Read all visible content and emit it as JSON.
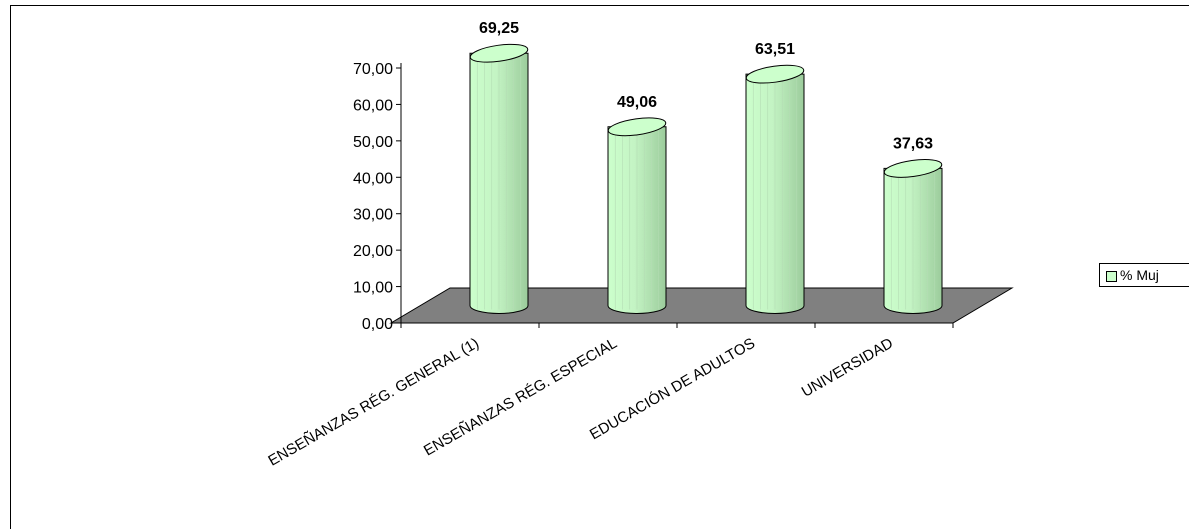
{
  "chart_data": {
    "type": "bar",
    "style": "3d-cylinder",
    "categories": [
      "ENSEÑANZAS RÉG. GENERAL (1)",
      "ENSEÑANZAS RÉG. ESPECIAL",
      "EDUCACIÓN DE ADULTOS",
      "UNIVERSIDAD"
    ],
    "series": [
      {
        "name": "% Muj",
        "values": [
          69.25,
          49.06,
          63.51,
          37.63
        ],
        "data_labels": [
          "69,25",
          "49,06",
          "63,51",
          "37,63"
        ]
      }
    ],
    "ylim": [
      0,
      70
    ],
    "yticks": [
      "0,00",
      "10,00",
      "20,00",
      "30,00",
      "40,00",
      "50,00",
      "60,00",
      "70,00"
    ],
    "legend_position": "right",
    "colors": {
      "bar_fill": "#ccffcc",
      "bar_shade": "#a9d8a9",
      "floor": "#808080",
      "axis": "#000000"
    }
  }
}
